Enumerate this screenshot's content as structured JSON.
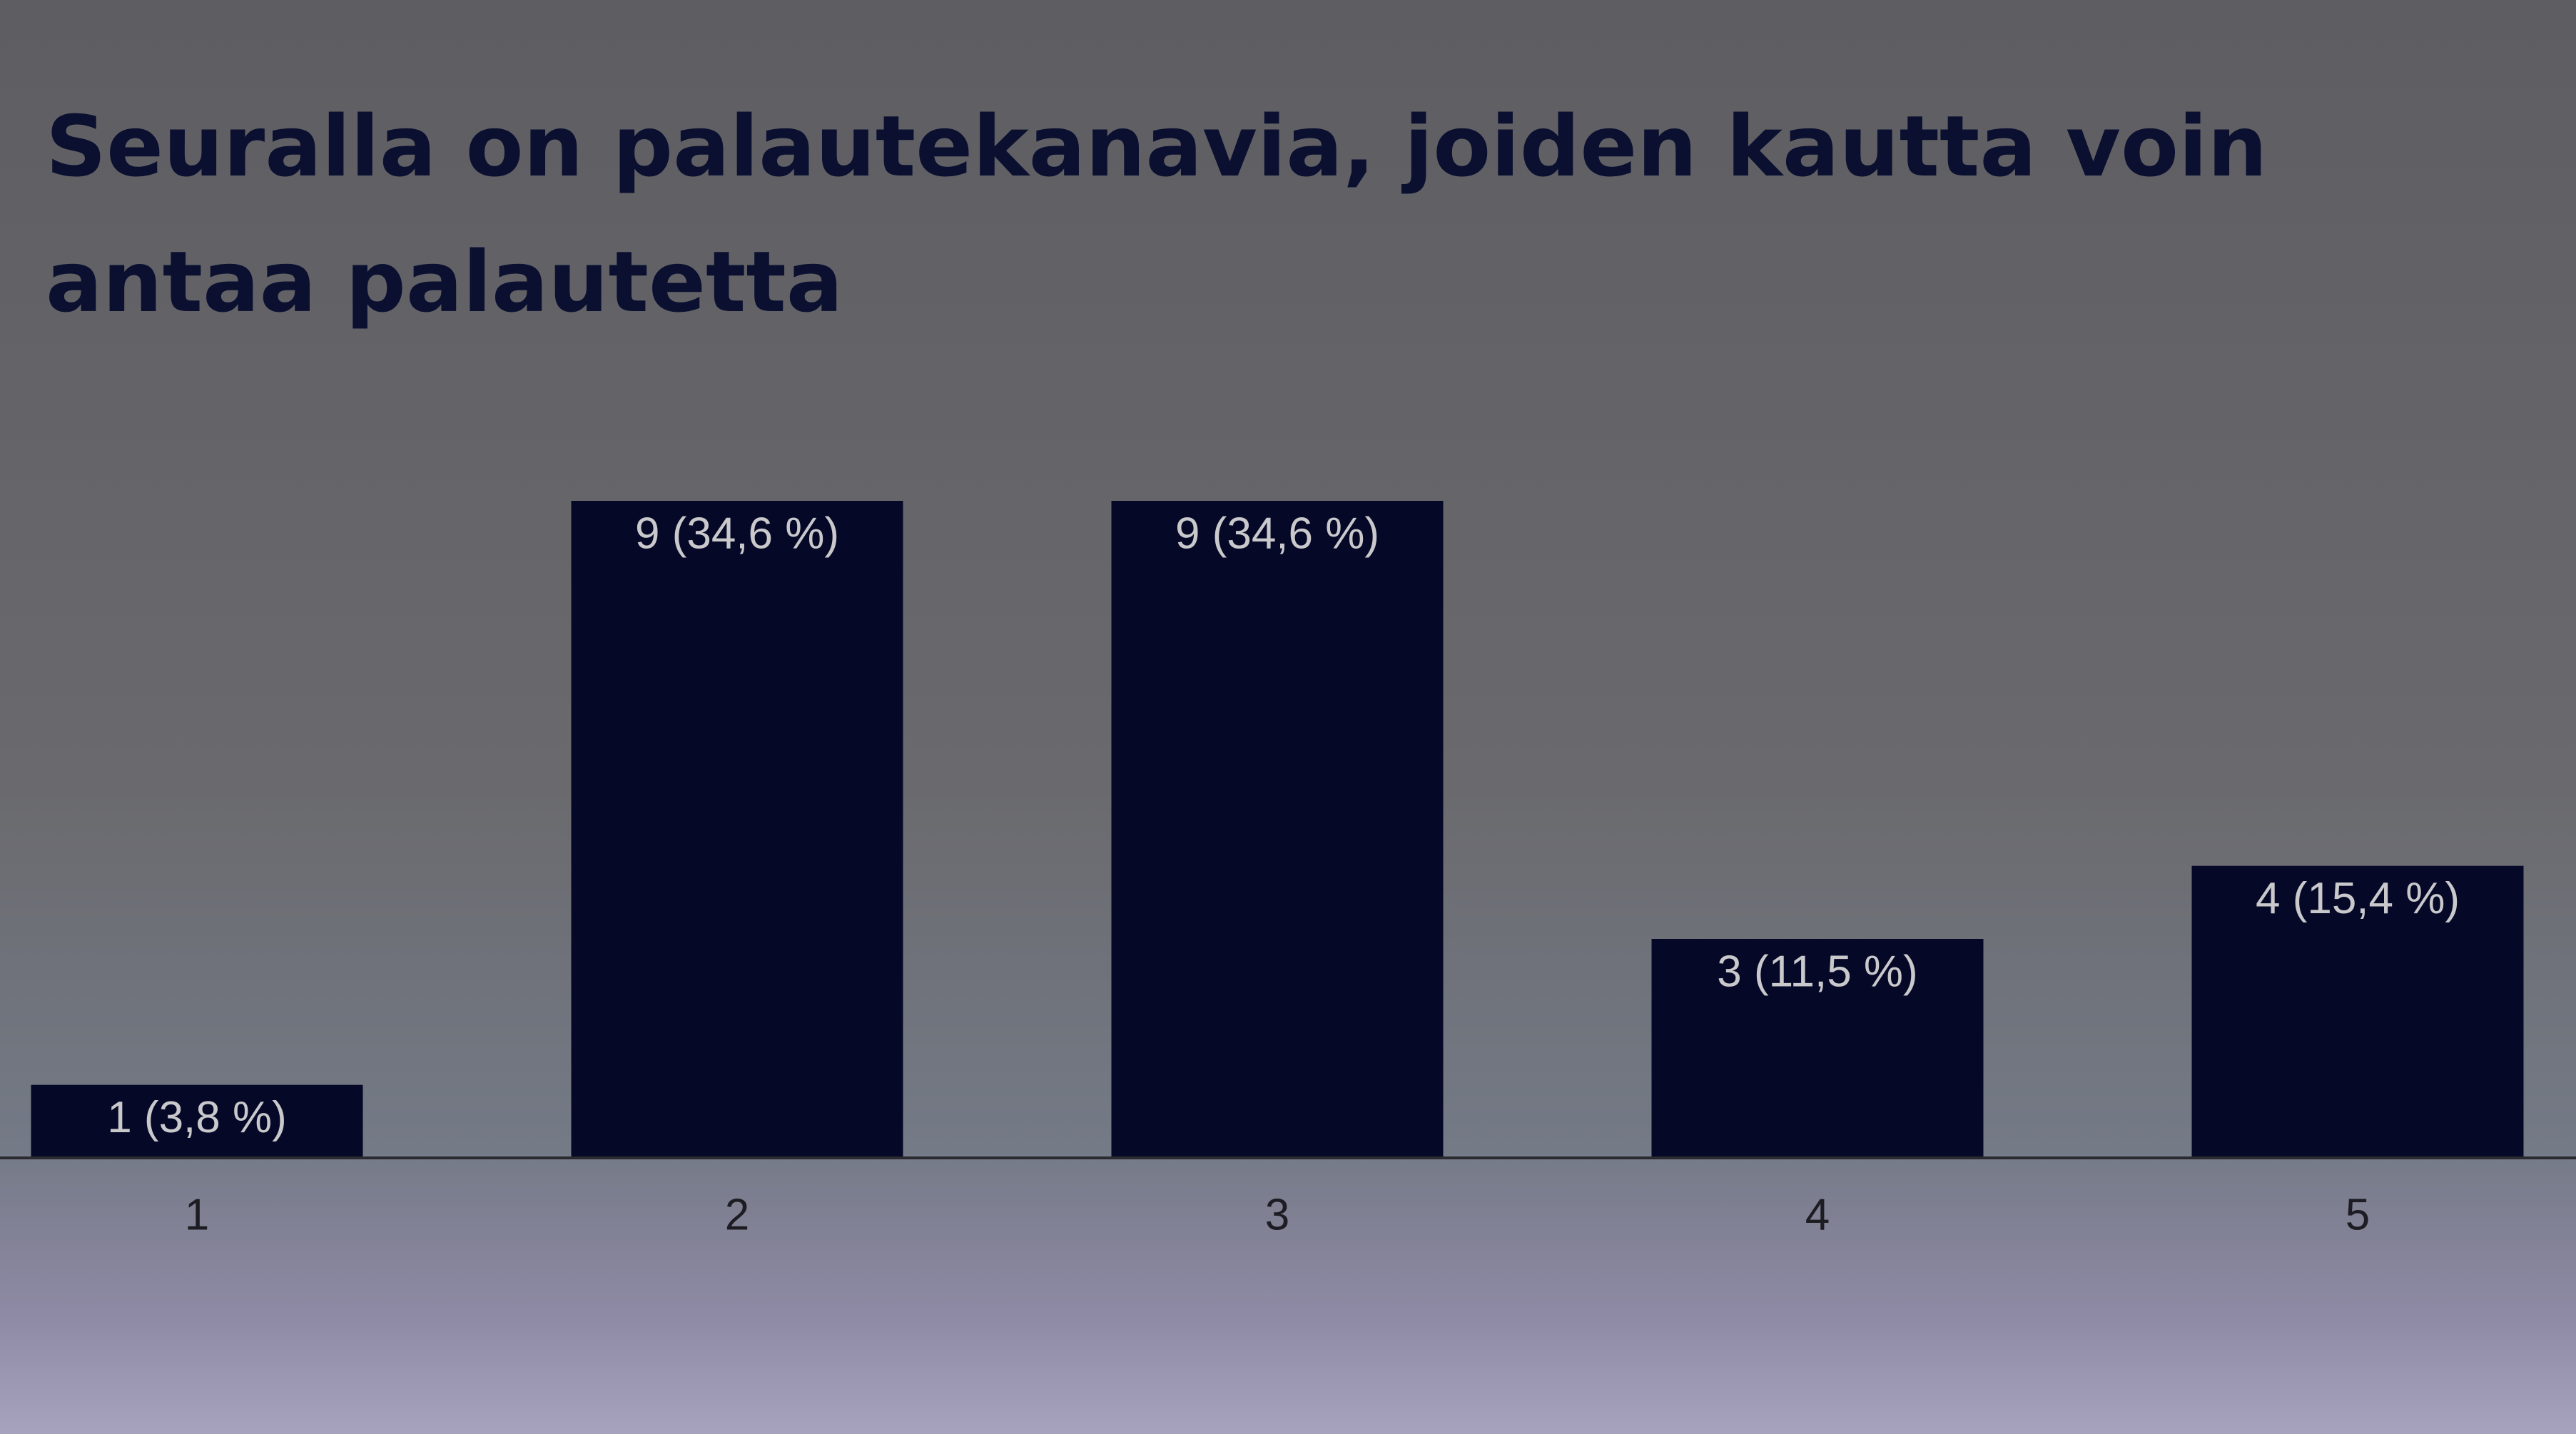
{
  "chart_data": {
    "type": "bar",
    "title": "Seuralla on palautekanavia, joiden kautta voin antaa palautetta",
    "categories": [
      "1",
      "2",
      "3",
      "4",
      "5"
    ],
    "values": [
      1,
      9,
      9,
      3,
      4
    ],
    "value_labels": [
      "1 (3,8 %)",
      "9 (34,6 %)",
      "9 (34,6 %)",
      "3 (11,5 %)",
      "4 (15,4 %)"
    ],
    "color": "#060828",
    "ylim": [
      0,
      9
    ]
  }
}
